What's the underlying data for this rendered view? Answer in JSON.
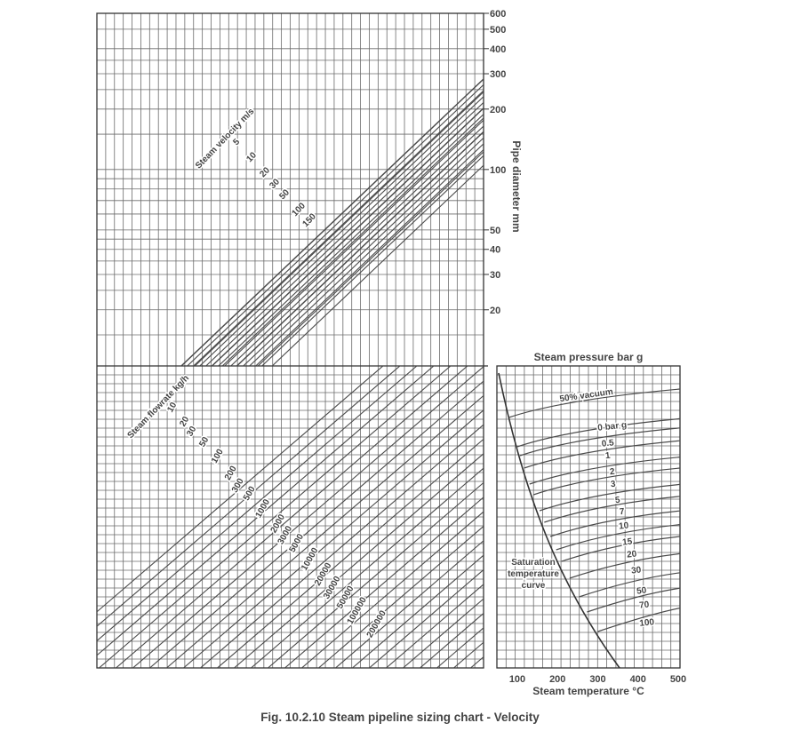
{
  "caption": "Fig. 10.2.10 Steam pipeline sizing chart - Velocity",
  "colors": {
    "grid": "#6b6b6b",
    "line": "#4a4a4a",
    "text": "#444444"
  },
  "chart_data": [
    {
      "type": "line",
      "panel": "velocity",
      "ylabel": "Pipe diameter mm",
      "yscale": "log",
      "y_ticks": [
        "600",
        "500",
        "400",
        "300",
        "200",
        "100",
        "50",
        "40",
        "30",
        "20"
      ],
      "family_label": "Steam velocity m/s",
      "series_labels": [
        "5",
        "10",
        "20",
        "30",
        "50",
        "100",
        "150"
      ]
    },
    {
      "type": "line",
      "panel": "flowrate",
      "family_label": "Steam flowrate kg/h",
      "series_labels": [
        "10",
        "20",
        "30",
        "50",
        "100",
        "200",
        "300",
        "500",
        "1000",
        "2000",
        "3000",
        "5000",
        "10000",
        "20000",
        "30000",
        "50000",
        "100000",
        "200000"
      ]
    },
    {
      "type": "line",
      "panel": "pressure",
      "title": "Steam pressure bar g",
      "xlabel": "Steam temperature °C",
      "x_ticks": [
        "100",
        "200",
        "300",
        "400",
        "500"
      ],
      "series_labels": [
        "50% vacuum",
        "0 bar g",
        "0.5",
        "1",
        "2",
        "3",
        "5",
        "7",
        "10",
        "15",
        "20",
        "30",
        "50",
        "70",
        "100"
      ],
      "saturation_label": [
        "Saturation",
        "temperature",
        "curve"
      ]
    }
  ]
}
